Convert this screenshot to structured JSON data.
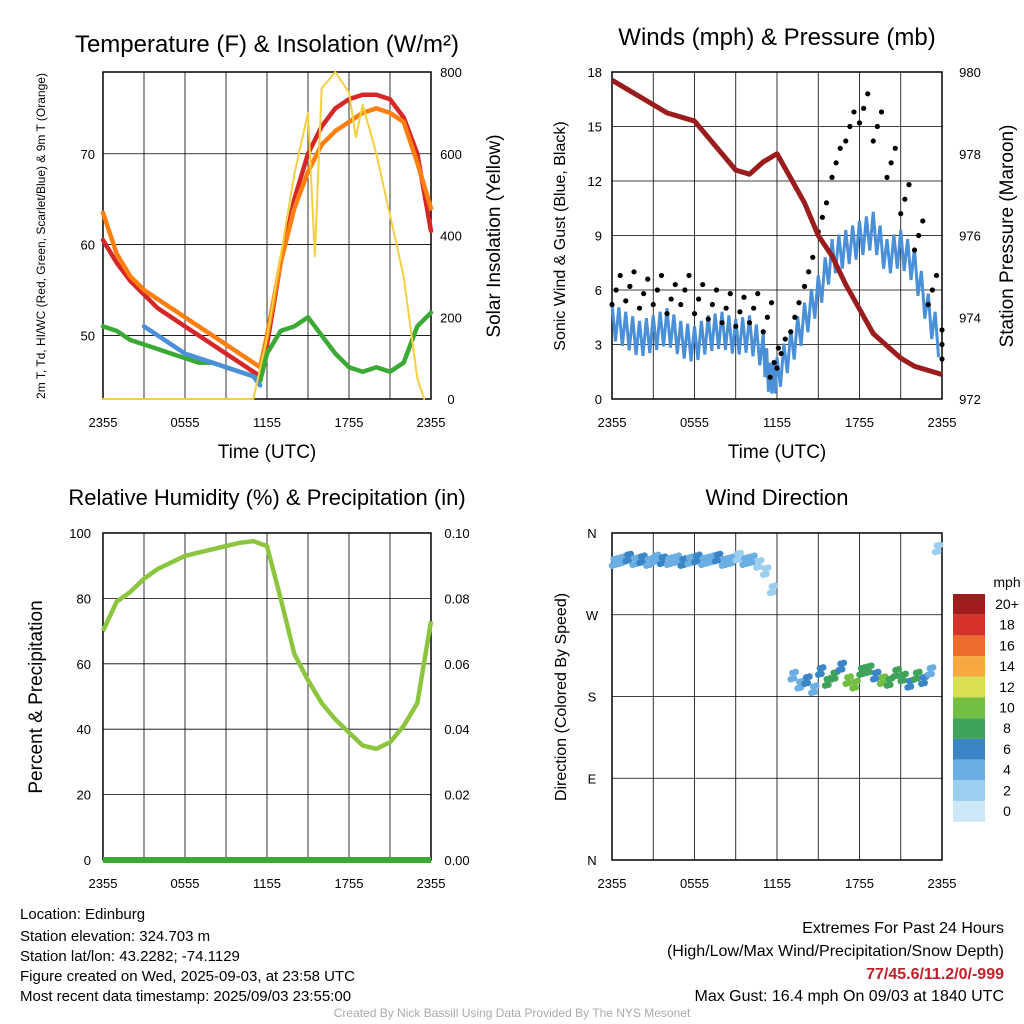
{
  "chart_data": [
    {
      "type": "line",
      "title": "Temperature (F) & Insolation (W/m²)",
      "xlabel": "Time (UTC)",
      "ylabel": "2m T, Td, HI/WC (Red, Green, Scarlet/Blue) & 9m T (Orange)",
      "y2label": "Solar Insolation (Yellow)",
      "x_ticks": [
        "2355",
        "0555",
        "1155",
        "1755",
        "2355"
      ],
      "y_ticks": [
        50,
        60,
        70
      ],
      "ylim": [
        43,
        79
      ],
      "y2_ticks": [
        0,
        200,
        400,
        600,
        800
      ],
      "y2lim": [
        0,
        800
      ],
      "series": [
        {
          "axis": "left",
          "color": "#d62728",
          "x": [
            0,
            1,
            2,
            3,
            4,
            5,
            6,
            7,
            8,
            9,
            10,
            11,
            11.5,
            12,
            13,
            14,
            15,
            16,
            17,
            18,
            19,
            20,
            21,
            22,
            23,
            24
          ],
          "values": [
            60.5,
            58,
            56,
            54.5,
            53,
            52,
            51,
            50,
            49,
            48,
            47,
            46,
            45.5,
            49,
            58,
            65,
            70,
            73,
            75,
            76,
            76.5,
            76.5,
            76,
            74,
            70,
            61.5
          ]
        },
        {
          "axis": "left",
          "color": "#ff7f0e",
          "x": [
            0,
            1,
            2,
            3,
            4,
            5,
            6,
            7,
            8,
            9,
            10,
            11,
            11.5,
            12,
            13,
            14,
            15,
            16,
            17,
            18,
            19,
            20,
            21,
            22,
            23,
            24
          ],
          "values": [
            63.5,
            59,
            56.5,
            55,
            54,
            53,
            52,
            51,
            50,
            49,
            48,
            47,
            46.5,
            50,
            58,
            64,
            68,
            71,
            72.5,
            73.5,
            74.5,
            75,
            74.5,
            73.5,
            69,
            64
          ]
        },
        {
          "axis": "left",
          "color": "#3aaa35",
          "x": [
            0,
            1,
            2,
            3,
            4,
            5,
            6,
            7,
            8,
            9,
            10,
            11,
            11.5,
            12,
            13,
            14,
            15,
            16,
            17,
            18,
            19,
            20,
            21,
            22,
            23,
            24
          ],
          "values": [
            51,
            50.5,
            49.5,
            49,
            48.5,
            48,
            47.5,
            47,
            47,
            46.5,
            46,
            45.5,
            45,
            48,
            50.5,
            51,
            52,
            50,
            48,
            46.5,
            46,
            46.5,
            46,
            47,
            51,
            52.5
          ]
        },
        {
          "axis": "left",
          "color": "#4a90d9",
          "x": [
            3,
            4,
            5,
            6,
            7,
            8,
            9,
            10,
            11,
            11.5
          ],
          "values": [
            51,
            50,
            49,
            48,
            47.5,
            47,
            46.5,
            46,
            45.5,
            44.5
          ]
        },
        {
          "axis": "right",
          "color": "#f4d03f",
          "x": [
            0,
            10,
            11,
            12,
            13,
            14,
            15,
            15.5,
            16,
            17,
            18,
            18.5,
            19,
            20,
            21,
            22,
            23,
            23.5
          ],
          "values": [
            0,
            0,
            0,
            150,
            350,
            550,
            700,
            350,
            760,
            800,
            750,
            640,
            720,
            600,
            450,
            300,
            50,
            0
          ]
        }
      ]
    },
    {
      "type": "scatter",
      "title": "Winds (mph) & Pressure (mb)",
      "xlabel": "Time (UTC)",
      "ylabel": "Sonic Wind & Gust (Blue, Black)",
      "y2label": "Station Pressure (Maroon)",
      "x_ticks": [
        "2355",
        "0555",
        "1155",
        "1755",
        "2355"
      ],
      "y_ticks": [
        0,
        3,
        6,
        9,
        12,
        15,
        18
      ],
      "ylim": [
        0,
        18
      ],
      "y2_ticks": [
        972,
        974,
        976,
        978,
        980
      ],
      "y2lim": [
        972,
        980
      ],
      "series": [
        {
          "name": "wind",
          "color": "#4a90d9",
          "x": [
            0,
            1,
            2,
            3,
            4,
            5,
            6,
            7,
            8,
            9,
            10,
            11,
            11.5,
            12,
            13,
            14,
            15,
            16,
            17,
            18,
            19,
            20,
            21,
            22,
            23,
            24
          ],
          "values": [
            4.5,
            4,
            3.5,
            3.8,
            4.2,
            3.5,
            3.2,
            3.8,
            4,
            3.6,
            3.8,
            2.8,
            1.2,
            1.5,
            3,
            4.5,
            6,
            8,
            8.5,
            9,
            9.5,
            8,
            8.5,
            7.5,
            5,
            3
          ]
        },
        {
          "name": "gust",
          "color": "#000000",
          "x": [
            0,
            1,
            2,
            3,
            4,
            5,
            6,
            7,
            8,
            9,
            10,
            11,
            11.5,
            12,
            13,
            14,
            15,
            16,
            17,
            18,
            19,
            20,
            21,
            22,
            23,
            24
          ],
          "values": [
            6,
            6.2,
            5.8,
            6,
            5.5,
            6,
            5.5,
            5.2,
            5,
            4.8,
            5,
            4.5,
            2,
            2.5,
            4.5,
            7,
            10,
            13,
            15,
            16,
            15,
            13,
            11,
            9,
            6,
            3
          ]
        },
        {
          "name": "pressure",
          "axis": "right",
          "color": "#9b1c1c",
          "x": [
            0,
            2,
            4,
            6,
            8,
            9,
            10,
            11,
            12,
            13,
            14,
            15,
            16,
            17,
            18,
            19,
            20,
            21,
            22,
            23,
            24
          ],
          "values": [
            979.8,
            979.4,
            979,
            978.8,
            978,
            977.6,
            977.5,
            977.8,
            978,
            977.4,
            976.8,
            976,
            975.5,
            974.8,
            974.2,
            973.6,
            973.3,
            973.0,
            972.8,
            972.7,
            972.6
          ]
        }
      ]
    },
    {
      "type": "line",
      "title": "Relative Humidity (%) & Precipitation (in)",
      "ylabel": "Percent & Precipitation",
      "x_ticks": [
        "2355",
        "0555",
        "1155",
        "1755",
        "2355"
      ],
      "y_ticks": [
        0,
        20,
        40,
        60,
        80,
        100
      ],
      "ylim": [
        0,
        100
      ],
      "y2_ticks": [
        "0.00",
        "0.02",
        "0.04",
        "0.06",
        "0.08",
        "0.10"
      ],
      "y2lim": [
        0,
        0.1
      ],
      "series": [
        {
          "name": "rh",
          "color": "#8cc63f",
          "x": [
            0,
            1,
            2,
            3,
            4,
            5,
            6,
            7,
            8,
            9,
            10,
            11,
            12,
            13,
            14,
            15,
            16,
            17,
            18,
            19,
            20,
            21,
            22,
            23,
            24
          ],
          "values": [
            70,
            79,
            82,
            86,
            89,
            91,
            93,
            94,
            95,
            96,
            97,
            97.5,
            96,
            80,
            63,
            55,
            48,
            43,
            39,
            35,
            34,
            36,
            41,
            48,
            73
          ]
        },
        {
          "name": "precip",
          "axis": "right",
          "color": "#3aaa35",
          "x": [
            0,
            24
          ],
          "values": [
            0,
            0
          ]
        }
      ]
    },
    {
      "type": "scatter",
      "title": "Wind Direction",
      "ylabel": "Direction (Colored By Speed)",
      "x_ticks": [
        "2355",
        "0555",
        "1155",
        "1755",
        "2355"
      ],
      "y_ticks": [
        "N",
        "E",
        "S",
        "W",
        "N"
      ],
      "ylim": [
        0,
        360
      ],
      "legend_title": "mph",
      "legend": [
        "0",
        "2",
        "4",
        "6",
        "8",
        "10",
        "12",
        "14",
        "16",
        "18",
        "20+"
      ],
      "legend_colors": [
        "#cce8f7",
        "#9ccfef",
        "#6aaee3",
        "#3a85c6",
        "#3fa35b",
        "#72bf44",
        "#d9e04f",
        "#f7a840",
        "#ef6a2d",
        "#d7312b",
        "#a11c1c"
      ],
      "series": [
        {
          "name": "westerly",
          "x": [
            0,
            0.5,
            1,
            1.5,
            2,
            2.5,
            3,
            3.5,
            4,
            4.5,
            5,
            5.5,
            6,
            6.5,
            7,
            7.5,
            8,
            8.5,
            9,
            9.5,
            10,
            10.5,
            11,
            11.5
          ],
          "values": [
            330,
            332,
            335,
            331,
            333,
            330,
            334,
            332,
            331,
            333,
            330,
            332,
            334,
            331,
            333,
            335,
            330,
            332,
            336,
            331,
            333,
            328,
            320,
            300
          ],
          "speeds": [
            4,
            3,
            5,
            4,
            6,
            3,
            4,
            5,
            4,
            3,
            6,
            4,
            5,
            3,
            4,
            5,
            4,
            3,
            2,
            4,
            3,
            2,
            1,
            1
          ]
        },
        {
          "name": "southerly",
          "x": [
            13,
            13.5,
            14,
            14.5,
            15,
            15.5,
            16,
            16.5,
            17,
            17.5,
            18,
            18.5,
            19,
            19.5,
            20,
            20.5,
            21,
            21.5,
            22,
            22.5,
            23,
            23.5
          ],
          "values": [
            205,
            195,
            200,
            190,
            210,
            198,
            205,
            215,
            200,
            195,
            210,
            212,
            205,
            200,
            198,
            208,
            203,
            196,
            205,
            200,
            210,
            345
          ],
          "speeds": [
            3,
            4,
            5,
            3,
            6,
            7,
            8,
            5,
            9,
            10,
            8,
            7,
            6,
            9,
            8,
            7,
            8,
            6,
            7,
            5,
            4,
            2
          ]
        }
      ]
    }
  ],
  "footer": {
    "location": "Location: Edinburg",
    "elevation": "Station elevation: 324.703 m",
    "latlon": "Station lat/lon: 43.2282; -74.1129",
    "created": "Figure created on Wed, 2025-09-03, at 23:58 UTC",
    "recent": "Most recent data timestamp: 2025/09/03 23:55:00"
  },
  "extremes": {
    "title": "Extremes For Past 24 Hours",
    "subtitle": "(High/Low/Max Wind/Precipitation/Snow Depth)",
    "values": "77/45.6/11.2/0/-999",
    "gust": "Max Gust: 16.4 mph On 09/03 at 1840 UTC"
  },
  "credit": "Created By Nick Bassill Using Data Provided By The NYS Mesonet"
}
